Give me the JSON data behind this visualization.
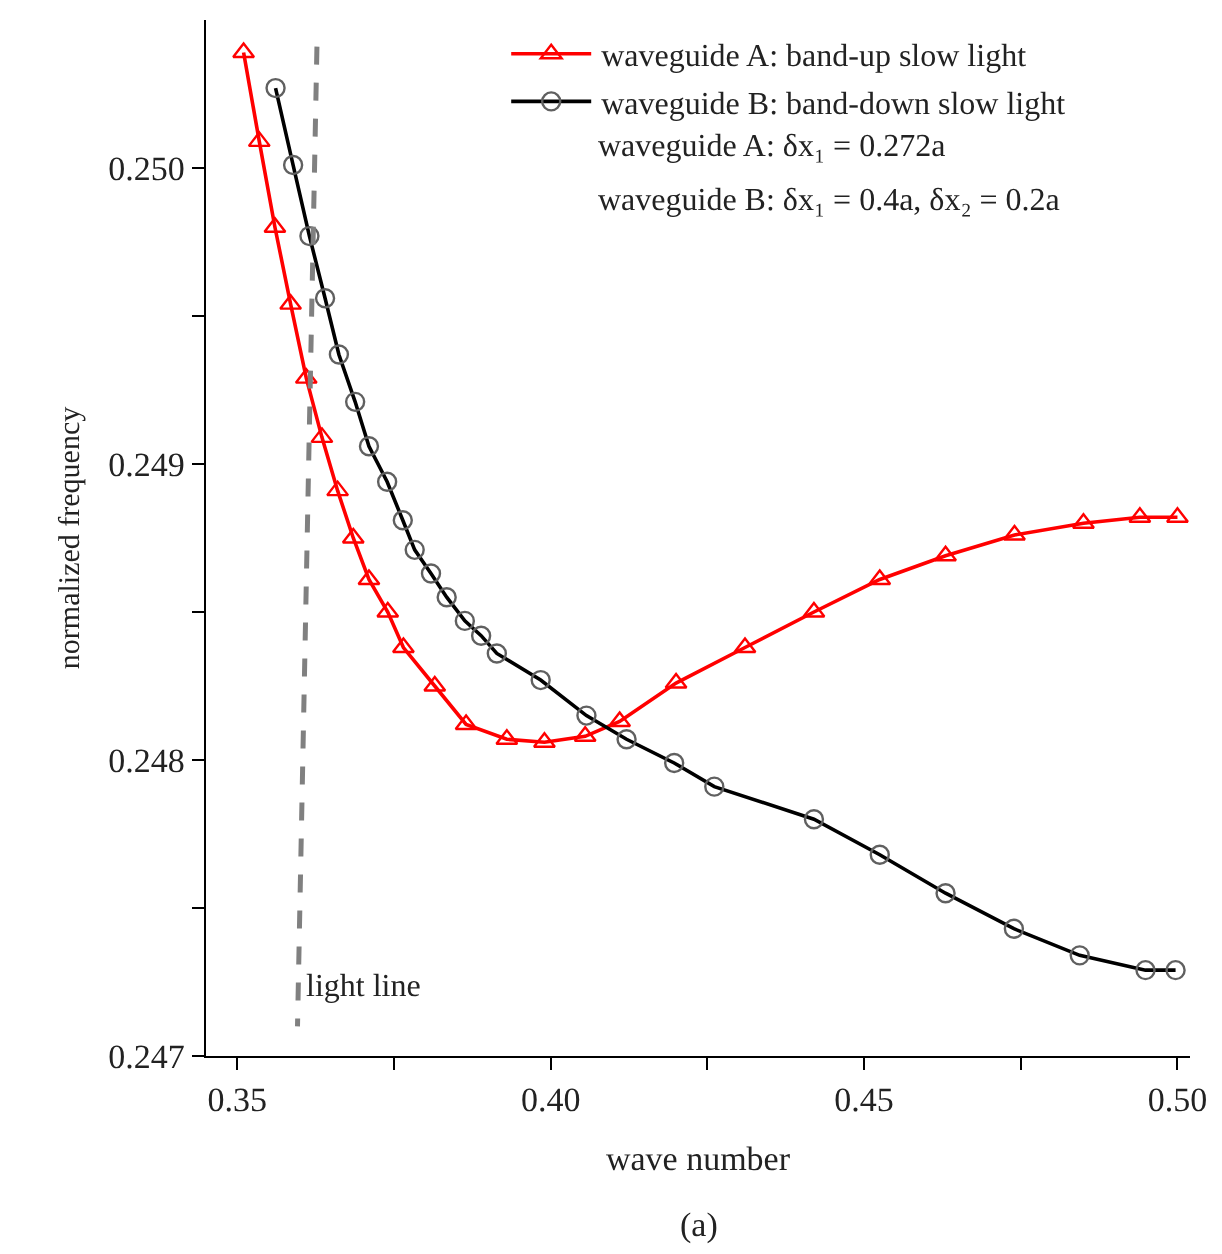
{
  "chart_data": {
    "type": "line",
    "xlabel": "wave number",
    "ylabel": "normalized frequency",
    "xlim": [
      0.345,
      0.502
    ],
    "ylim": [
      0.247,
      0.2505
    ],
    "xticks": [
      0.35,
      {
        "value": 0.375,
        "label": null
      },
      {
        "value": 0.4,
        "label": "0.40"
      },
      {
        "value": 0.425,
        "label": null
      },
      0.45,
      {
        "value": 0.475,
        "label": null
      },
      {
        "value": 0.5,
        "label": "0.50"
      }
    ],
    "yticks": [
      0.247,
      {
        "value": 0.2475,
        "label": null
      },
      0.248,
      {
        "value": 0.2485,
        "label": null
      },
      0.249,
      {
        "value": 0.2495,
        "label": null
      },
      {
        "value": 0.25,
        "label": "0.250"
      }
    ],
    "grid": false,
    "legend": "top right",
    "series": [
      {
        "name": "waveguide A: band-up slow light",
        "color": "#ff0000",
        "marker": "triangle",
        "line_style": "solid",
        "x": [
          0.351,
          0.3535,
          0.356,
          0.3585,
          0.361,
          0.3635,
          0.366,
          0.3685,
          0.371,
          0.374,
          0.3765,
          0.3815,
          0.3865,
          0.393,
          0.399,
          0.4055,
          0.411,
          0.42,
          0.431,
          0.442,
          0.4525,
          0.463,
          0.474,
          0.485,
          0.494,
          0.5
        ],
        "values": [
          0.25039,
          0.25009,
          0.2498,
          0.24954,
          0.24929,
          0.24909,
          0.24891,
          0.24875,
          0.24861,
          0.2485,
          0.24838,
          0.24825,
          0.24812,
          0.24807,
          0.24806,
          0.24808,
          0.24813,
          0.24826,
          0.24838,
          0.2485,
          0.24861,
          0.24869,
          0.24876,
          0.2488,
          0.24882,
          0.24882
        ]
      },
      {
        "name": "waveguide B: band-down slow light",
        "color": "#000000",
        "marker": "circle",
        "line_style": "solid",
        "x": [
          0.3561,
          0.3589,
          0.3615,
          0.364,
          0.3662,
          0.3688,
          0.371,
          0.3739,
          0.3764,
          0.3783,
          0.3809,
          0.3834,
          0.3863,
          0.3889,
          0.3914,
          0.3984,
          0.4057,
          0.4121,
          0.4197,
          0.4261,
          0.442,
          0.4525,
          0.463,
          0.4739,
          0.4844,
          0.4949,
          0.4997
        ],
        "values": [
          0.25027,
          0.25001,
          0.24977,
          0.24956,
          0.24937,
          0.24921,
          0.24906,
          0.24894,
          0.24881,
          0.24871,
          0.24863,
          0.24855,
          0.24847,
          0.24842,
          0.24836,
          0.24827,
          0.24815,
          0.24807,
          0.24799,
          0.24791,
          0.2478,
          0.24768,
          0.24755,
          0.24743,
          0.24734,
          0.24729,
          0.24729
        ]
      },
      {
        "type": "line",
        "color": "#808080",
        "marker": "none",
        "line_style": "dashed",
        "x": [
          0.3627,
          0.3596
        ],
        "values": [
          0.25041,
          0.2471
        ]
      }
    ],
    "annotations": [
      "waveguide A: δx₁ = 0.272a",
      "waveguide B: δx₁ = 0.4a, δx₂ = 0.2a",
      {
        "text": "light line",
        "x": 0.3602,
        "y": 0.24723
      },
      "(a)"
    ]
  }
}
